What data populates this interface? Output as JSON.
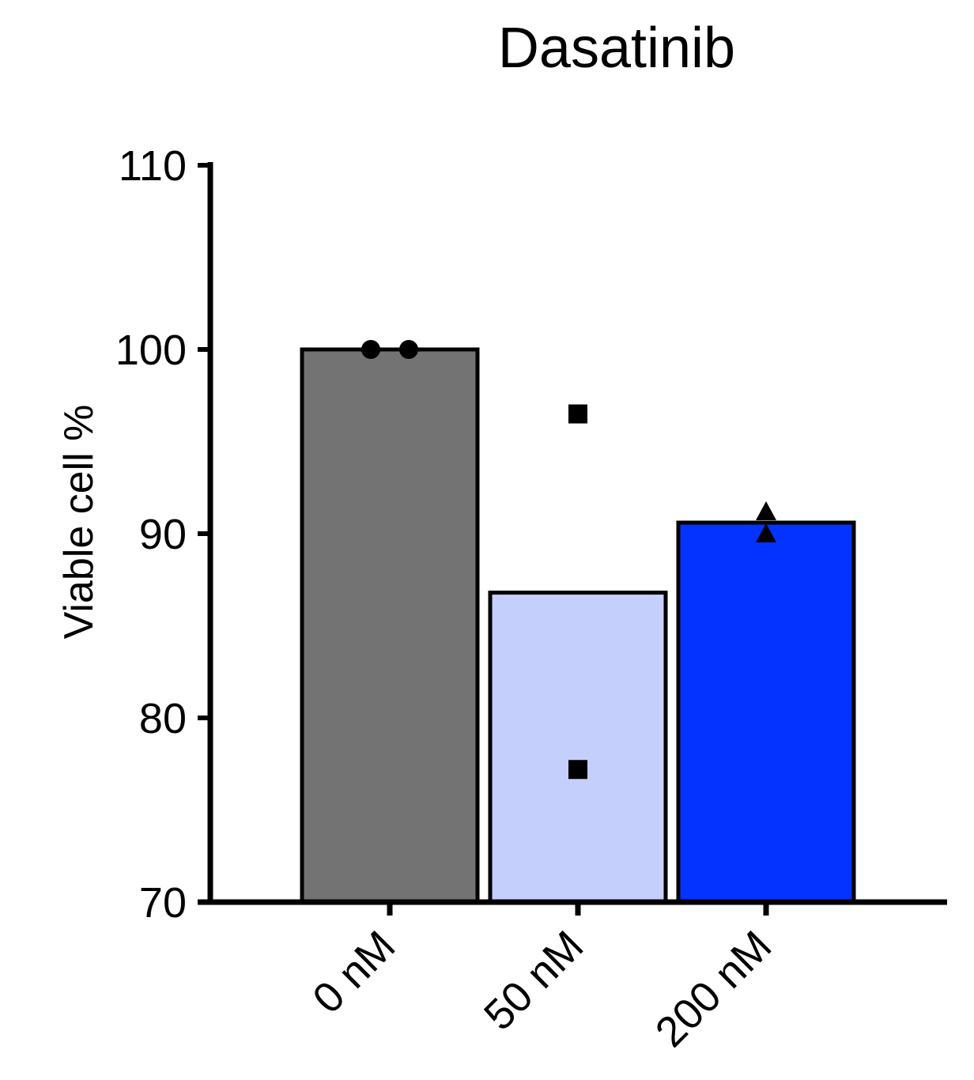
{
  "chart_data": {
    "type": "bar",
    "title": "Dasatinib",
    "xlabel": "",
    "ylabel": "Viable cell %",
    "ylim": [
      70,
      110
    ],
    "yticks": [
      70,
      80,
      90,
      100,
      110
    ],
    "grid": false,
    "categories": [
      "0 nM",
      "50 nM",
      "200 nM"
    ],
    "values": [
      100,
      86.8,
      90.6
    ],
    "bar_colors": [
      "#737373",
      "#c5cffb",
      "#0433ff"
    ],
    "points": [
      {
        "category": "0 nM",
        "marker": "circle",
        "values": [
          100.0,
          100.0
        ]
      },
      {
        "category": "50 nM",
        "marker": "square",
        "values": [
          96.5,
          77.2
        ]
      },
      {
        "category": "200 nM",
        "marker": "triangle",
        "values": [
          91.2,
          90.0
        ]
      }
    ]
  }
}
